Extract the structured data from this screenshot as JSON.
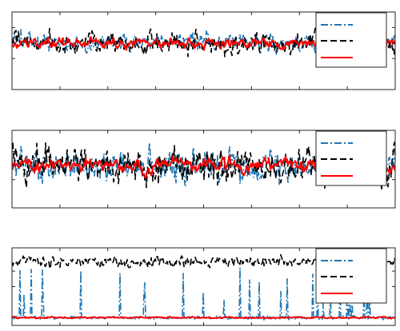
{
  "colors": {
    "series_blue": "#1f77b4",
    "series_black": "#000000",
    "series_red": "#ff0000",
    "axes": "#262626"
  },
  "chart_data": [
    {
      "type": "line",
      "panel": "top",
      "title": "",
      "xlabel": "",
      "ylabel": "",
      "xlim": [
        0,
        1000
      ],
      "ylim": [
        -3,
        2
      ],
      "xticks": [
        0,
        125,
        250,
        375,
        500,
        625,
        750,
        875,
        1000
      ],
      "yticks": [
        -1,
        0,
        1
      ],
      "tick_labels_visible": false,
      "grid": false,
      "legend": {
        "placement": "top-right",
        "entries": 3,
        "labels_visible": false
      },
      "series": [
        {
          "color": "series_blue",
          "style": "dash-dot",
          "n": 480,
          "seed": 11,
          "mean": 0.0,
          "noise": 0.55,
          "smooth": 0.55,
          "spikes": []
        },
        {
          "color": "series_black",
          "style": "dashed",
          "n": 480,
          "seed": 12,
          "mean": 0.0,
          "noise": 0.6,
          "smooth": 0.5,
          "spikes": []
        },
        {
          "color": "series_red",
          "style": "solid",
          "n": 480,
          "seed": 13,
          "mean": 0.0,
          "noise": 0.45,
          "smooth": 0.7,
          "spikes": []
        }
      ]
    },
    {
      "type": "line",
      "panel": "middle",
      "title": "",
      "xlabel": "",
      "ylabel": "",
      "xlim": [
        0,
        1000
      ],
      "ylim": [
        -3,
        2.5
      ],
      "xticks": [
        0,
        125,
        250,
        375,
        500,
        625,
        750,
        875,
        1000
      ],
      "yticks": [
        -1,
        0,
        1
      ],
      "tick_labels_visible": false,
      "grid": false,
      "legend": {
        "placement": "top-right",
        "entries": 3,
        "labels_visible": false
      },
      "series": [
        {
          "color": "series_blue",
          "style": "dash-dot",
          "n": 480,
          "seed": 21,
          "mean": 0.0,
          "noise": 0.9,
          "smooth": 0.45,
          "spikes": []
        },
        {
          "color": "series_black",
          "style": "dashed",
          "n": 480,
          "seed": 22,
          "mean": 0.0,
          "noise": 0.95,
          "smooth": 0.4,
          "spikes": []
        },
        {
          "color": "series_red",
          "style": "solid",
          "n": 480,
          "seed": 23,
          "mean": 0.0,
          "noise": 0.6,
          "smooth": 0.7,
          "spikes": []
        }
      ]
    },
    {
      "type": "line",
      "panel": "bottom",
      "title": "",
      "xlabel": "",
      "ylabel": "",
      "xlim": [
        0,
        1000
      ],
      "ylim": [
        -0.5,
        4.5
      ],
      "xticks": [
        0,
        125,
        250,
        375,
        500,
        625,
        750,
        875,
        1000
      ],
      "yticks": [
        2,
        3
      ],
      "tick_labels_visible": false,
      "grid": false,
      "legend": {
        "placement": "top-right",
        "entries": 3,
        "labels_visible": false
      },
      "series": [
        {
          "color": "series_blue",
          "style": "dash-dot",
          "n": 480,
          "seed": 31,
          "mean": 0.0,
          "noise": 0.05,
          "smooth": 0.0,
          "spikes": [
            0.4,
            2.2
          ]
        },
        {
          "color": "series_black",
          "style": "dashed",
          "n": 480,
          "seed": 32,
          "mean": 3.6,
          "noise": 0.25,
          "smooth": 0.4,
          "spikes": []
        },
        {
          "color": "series_red",
          "style": "solid",
          "n": 480,
          "seed": 33,
          "mean": 0.0,
          "noise": 0.05,
          "smooth": 0.6,
          "spikes": []
        }
      ]
    }
  ]
}
